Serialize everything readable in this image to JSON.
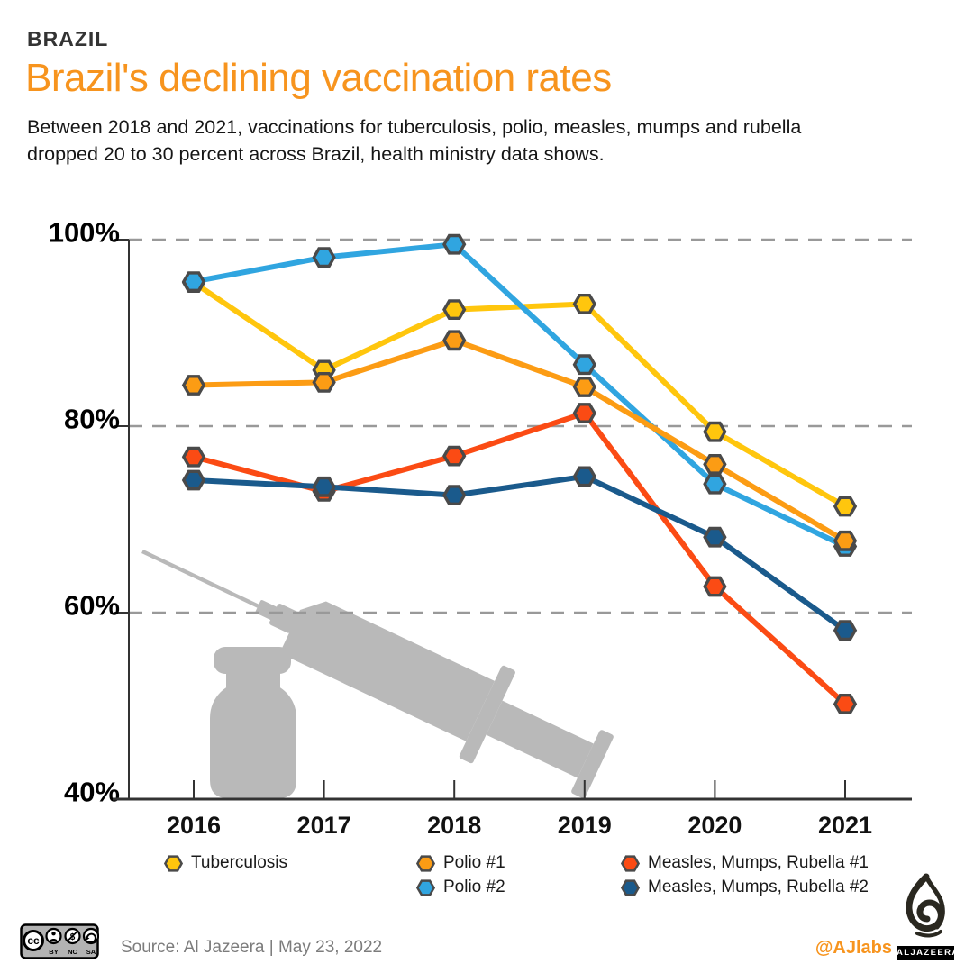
{
  "colors": {
    "accent_orange": "#F7941E",
    "kicker_dark": "#333333",
    "grid_gray": "#999999",
    "marker_outline": "#4A4A4A",
    "illustration_gray": "#B9B9B9"
  },
  "header": {
    "kicker": "BRAZIL",
    "title": "Brazil's declining vaccination rates",
    "subtitle": "Between 2018 and 2021, vaccinations for tuberculosis, polio, measles, mumps and rubella dropped 20 to 30 percent across Brazil, health ministry data shows."
  },
  "chart_data": {
    "type": "line",
    "title": "",
    "xlabel": "",
    "ylabel": "",
    "categories": [
      "2016",
      "2017",
      "2018",
      "2019",
      "2020",
      "2021"
    ],
    "series": [
      {
        "name": "Tuberculosis",
        "color": "#FFC60D",
        "values": [
          95.4,
          86.0,
          92.5,
          93.1,
          79.4,
          71.4
        ]
      },
      {
        "name": "Polio #2",
        "color": "#30A5E0",
        "values": [
          95.5,
          98.1,
          99.5,
          86.6,
          73.8,
          67.1
        ]
      },
      {
        "name": "Polio #1",
        "color": "#FC9C14",
        "values": [
          84.4,
          84.7,
          89.2,
          84.2,
          75.9,
          67.7
        ]
      },
      {
        "name": "Measles, Mumps, Rubella #1",
        "color": "#FB4B14",
        "values": [
          76.7,
          73.0,
          76.8,
          81.4,
          62.8,
          50.2
        ]
      },
      {
        "name": "Measles, Mumps, Rubella #2",
        "color": "#1A5A8C",
        "values": [
          74.2,
          73.5,
          72.6,
          74.6,
          68.1,
          58.1
        ]
      }
    ],
    "ylim": [
      40,
      100
    ],
    "yticks": [
      {
        "value": 100,
        "label": "100%"
      },
      {
        "value": 80,
        "label": "80%"
      },
      {
        "value": 60,
        "label": "60%"
      },
      {
        "value": 40,
        "label": "40%"
      }
    ],
    "grid": "horizontal-dashed",
    "marker": "hexagon",
    "legend_position": "bottom"
  },
  "legend": {
    "items": [
      {
        "series": 0,
        "col": 0,
        "row": 0
      },
      {
        "series": 2,
        "col": 1,
        "row": 0
      },
      {
        "series": 1,
        "col": 1,
        "row": 1
      },
      {
        "series": 3,
        "col": 2,
        "row": 0
      },
      {
        "series": 4,
        "col": 2,
        "row": 1
      }
    ]
  },
  "footer": {
    "source": "Source: Al Jazeera | May 23, 2022",
    "handle": "@AJlabs",
    "logo_text": "ALJAZEERA",
    "cc_mark": "cc",
    "cc_labels": [
      "BY",
      "NC",
      "SA"
    ],
    "cc_nc_glyph": "$"
  }
}
